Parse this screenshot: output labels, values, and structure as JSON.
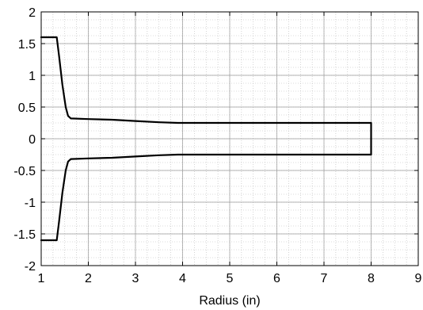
{
  "chart_data": {
    "type": "line",
    "title": "",
    "xlabel": "Radius (in)",
    "ylabel": "",
    "xlim": [
      1,
      9
    ],
    "ylim": [
      -2,
      2
    ],
    "xticks": [
      1,
      2,
      3,
      4,
      5,
      6,
      7,
      8,
      9
    ],
    "yticks": [
      -2,
      -1.5,
      -1,
      -0.5,
      0,
      0.5,
      1,
      1.5,
      2
    ],
    "grid": true,
    "minor_grid": true,
    "legend": "none",
    "line_color": "#000000",
    "series": [
      {
        "x": [
          1.0,
          1.33,
          1.38,
          1.45,
          1.52,
          1.57,
          1.63,
          2.0,
          2.5,
          3.0,
          3.5,
          3.9,
          8.0,
          8.0,
          3.9,
          3.5,
          3.0,
          2.5,
          2.0,
          1.63,
          1.57,
          1.52,
          1.45,
          1.38,
          1.33,
          1.0
        ],
        "y": [
          1.6,
          1.6,
          1.3,
          0.85,
          0.5,
          0.36,
          0.32,
          0.31,
          0.3,
          0.28,
          0.26,
          0.25,
          0.25,
          -0.25,
          -0.25,
          -0.26,
          -0.28,
          -0.3,
          -0.31,
          -0.32,
          -0.36,
          -0.5,
          -0.85,
          -1.3,
          -1.6,
          -1.6
        ]
      }
    ]
  }
}
